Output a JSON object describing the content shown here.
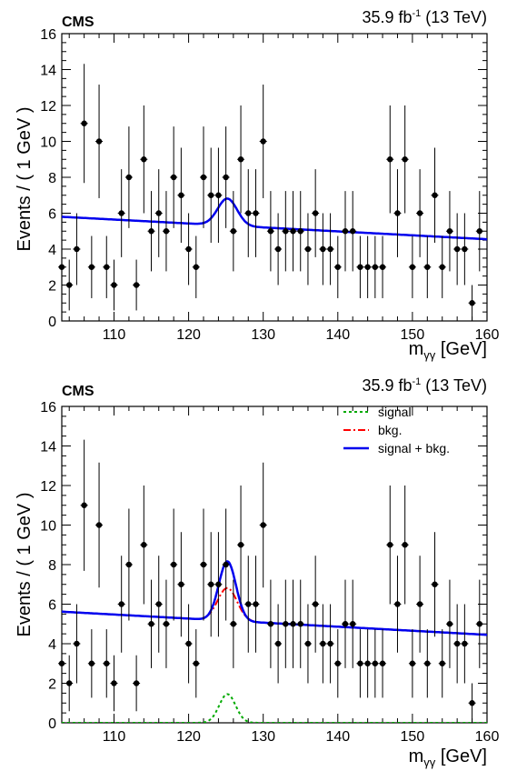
{
  "chart_data": [
    {
      "type": "scatter",
      "cms_label": "CMS",
      "lumi_label": "35.9 fb",
      "lumi_sup": "-1",
      "lumi_energy": " (13 TeV)",
      "ylabel": "Events / ( 1 GeV )",
      "xlabel_main": "m",
      "xlabel_sub": "γγ",
      "xlabel_unit": " [GeV]",
      "xlim": [
        103,
        160
      ],
      "ylim": [
        0,
        16
      ],
      "xticks": [
        110,
        120,
        130,
        140,
        150,
        160
      ],
      "yticks": [
        0,
        2,
        4,
        6,
        8,
        10,
        12,
        14,
        16
      ],
      "data_x": [
        103,
        104,
        105,
        106,
        107,
        108,
        109,
        110,
        111,
        112,
        113,
        114,
        115,
        116,
        117,
        118,
        119,
        120,
        121,
        122,
        123,
        124,
        125,
        126,
        127,
        128,
        129,
        130,
        131,
        132,
        133,
        134,
        135,
        136,
        137,
        138,
        139,
        140,
        141,
        142,
        143,
        144,
        145,
        146,
        147,
        148,
        149,
        150,
        151,
        152,
        153,
        154,
        155,
        156,
        157,
        158,
        159
      ],
      "data_y": [
        3,
        2,
        4,
        11,
        3,
        10,
        3,
        2,
        6,
        8,
        2,
        9,
        5,
        6,
        5,
        8,
        7,
        4,
        3,
        8,
        7,
        7,
        8,
        5,
        9,
        6,
        6,
        10,
        5,
        4,
        5,
        5,
        5,
        4,
        6,
        4,
        4,
        3,
        5,
        5,
        3,
        3,
        3,
        3,
        9,
        6,
        9,
        3,
        6,
        3,
        7,
        3,
        5,
        4,
        4,
        1,
        5
      ],
      "legend": [],
      "curves": [
        {
          "name": "signal + bkg.",
          "color": "#0000ee",
          "style": "solid",
          "bkg_at_103": 5.8,
          "bkg_at_160": 4.55,
          "peak_mass": 125.2,
          "peak_sigma": 1.3,
          "peak_amplitude": 1.5
        }
      ]
    },
    {
      "type": "scatter",
      "cms_label": "CMS",
      "lumi_label": "35.9 fb",
      "lumi_sup": "-1",
      "lumi_energy": " (13 TeV)",
      "ylabel": "Events / ( 1 GeV )",
      "xlabel_main": "m",
      "xlabel_sub": "γγ",
      "xlabel_unit": " [GeV]",
      "xlim": [
        103,
        160
      ],
      "ylim": [
        0,
        16
      ],
      "xticks": [
        110,
        120,
        130,
        140,
        150,
        160
      ],
      "yticks": [
        0,
        2,
        4,
        6,
        8,
        10,
        12,
        14,
        16
      ],
      "data_x": [
        103,
        104,
        105,
        106,
        107,
        108,
        109,
        110,
        111,
        112,
        113,
        114,
        115,
        116,
        117,
        118,
        119,
        120,
        121,
        122,
        123,
        124,
        125,
        126,
        127,
        128,
        129,
        130,
        131,
        132,
        133,
        134,
        135,
        136,
        137,
        138,
        139,
        140,
        141,
        142,
        143,
        144,
        145,
        146,
        147,
        148,
        149,
        150,
        151,
        152,
        153,
        154,
        155,
        156,
        157,
        158,
        159
      ],
      "data_y": [
        3,
        2,
        4,
        11,
        3,
        10,
        3,
        2,
        6,
        8,
        2,
        9,
        5,
        6,
        5,
        8,
        7,
        4,
        3,
        8,
        7,
        7,
        8,
        5,
        9,
        6,
        6,
        10,
        5,
        4,
        5,
        5,
        5,
        4,
        6,
        4,
        4,
        3,
        5,
        5,
        3,
        3,
        3,
        3,
        9,
        6,
        9,
        3,
        6,
        3,
        7,
        3,
        5,
        4,
        4,
        1,
        5
      ],
      "legend": [
        "signal",
        "bkg.",
        "signal + bkg."
      ],
      "curves": [
        {
          "name": "signal",
          "color": "#00aa00",
          "style": "dotted",
          "bkg_at_103": 0,
          "bkg_at_160": 0,
          "peak_mass": 125.2,
          "peak_sigma": 1.1,
          "peak_amplitude": 1.45
        },
        {
          "name": "bkg.",
          "color": "#ff0000",
          "style": "dashdot",
          "bkg_at_103": 5.62,
          "bkg_at_160": 4.45,
          "peak_mass": 125.2,
          "peak_sigma": 1.3,
          "peak_amplitude": 1.65
        },
        {
          "name": "signal + bkg.",
          "color": "#0000ee",
          "style": "solid",
          "bkg_at_103": 5.62,
          "bkg_at_160": 4.45,
          "peak_mass": 125.2,
          "peak_sigma": 1.15,
          "peak_amplitude": 3.0
        }
      ]
    }
  ]
}
